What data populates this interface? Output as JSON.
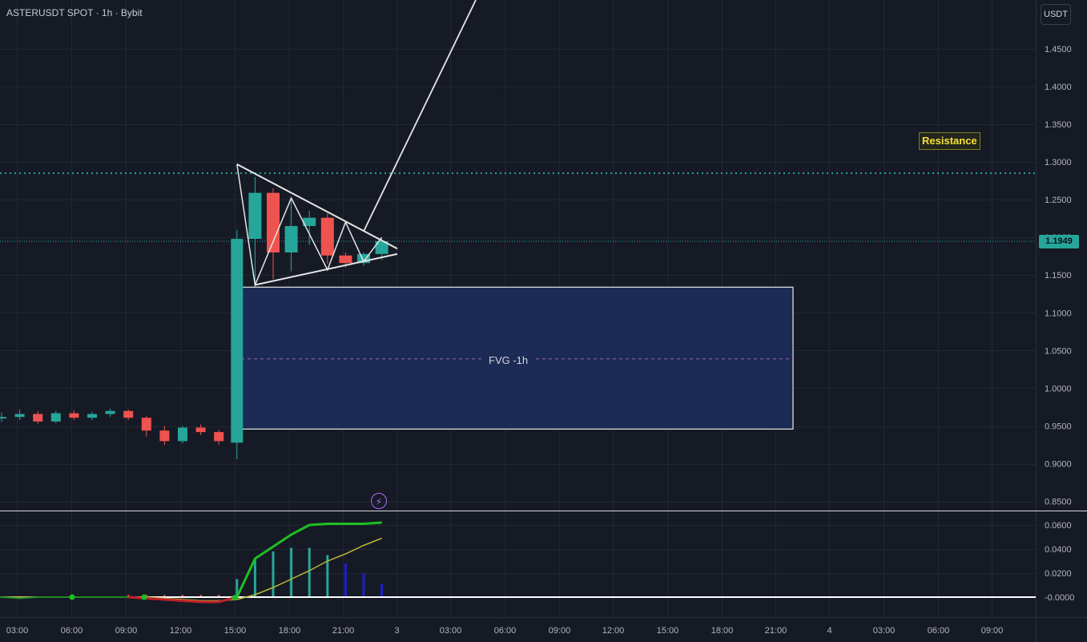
{
  "header": {
    "symbol_line": "ASTERUSDT SPOT · 1h · Bybit",
    "currency_button": "USDT"
  },
  "current_price_label": "1.1949",
  "annotations": {
    "resistance": "Resistance",
    "fvg": "FVG -1h",
    "bolt_icon": "lightning-bolt-icon"
  },
  "colors": {
    "up": "#26a69a",
    "down": "#ef5350",
    "background": "#161a25",
    "grid": "#232733",
    "fvg_fill": "#1c2b55",
    "resistance_line": "#26a69a",
    "pattern": "#e6e6e6",
    "osc_fast": "#1fbf22",
    "osc_slow": "#b8b833",
    "hist_blue": "#1e1ecc"
  },
  "chart_data": [
    {
      "type": "candlestick",
      "title": "",
      "y_axis": {
        "side": "right",
        "range": [
          0.83,
          1.5
        ],
        "ticks": [
          "1.4500",
          "1.4000",
          "1.3500",
          "1.3000",
          "1.2500",
          "1.2000",
          "1.1500",
          "1.1000",
          "1.0500",
          "1.0000",
          "0.9500",
          "0.9000",
          "0.8500"
        ]
      },
      "x_axis": {
        "ticks": [
          "03:00",
          "06:00",
          "09:00",
          "12:00",
          "15:00",
          "18:00",
          "21:00",
          "3",
          "03:00",
          "06:00",
          "09:00",
          "12:00",
          "15:00",
          "18:00",
          "21:00",
          "4",
          "03:00",
          "06:00",
          "09:00"
        ]
      },
      "grid": true,
      "candles": [
        {
          "t": "01:00",
          "o": 0.96,
          "h": 0.968,
          "l": 0.955,
          "c": 0.962
        },
        {
          "t": "02:00",
          "o": 0.962,
          "h": 0.972,
          "l": 0.958,
          "c": 0.966
        },
        {
          "t": "03:00",
          "o": 0.966,
          "h": 0.97,
          "l": 0.953,
          "c": 0.956
        },
        {
          "t": "04:00",
          "o": 0.956,
          "h": 0.97,
          "l": 0.954,
          "c": 0.967
        },
        {
          "t": "05:00",
          "o": 0.967,
          "h": 0.971,
          "l": 0.958,
          "c": 0.961
        },
        {
          "t": "06:00",
          "o": 0.961,
          "h": 0.969,
          "l": 0.958,
          "c": 0.966
        },
        {
          "t": "07:00",
          "o": 0.966,
          "h": 0.973,
          "l": 0.962,
          "c": 0.97
        },
        {
          "t": "08:00",
          "o": 0.97,
          "h": 0.972,
          "l": 0.958,
          "c": 0.961
        },
        {
          "t": "09:00",
          "o": 0.961,
          "h": 0.963,
          "l": 0.936,
          "c": 0.944
        },
        {
          "t": "10:00",
          "o": 0.944,
          "h": 0.95,
          "l": 0.925,
          "c": 0.93
        },
        {
          "t": "11:00",
          "o": 0.93,
          "h": 0.95,
          "l": 0.927,
          "c": 0.948
        },
        {
          "t": "12:00",
          "o": 0.948,
          "h": 0.952,
          "l": 0.938,
          "c": 0.942
        },
        {
          "t": "13:00",
          "o": 0.942,
          "h": 0.945,
          "l": 0.925,
          "c": 0.93
        },
        {
          "t": "14:00",
          "o": 0.928,
          "h": 1.21,
          "l": 0.906,
          "c": 1.198
        },
        {
          "t": "15:00",
          "o": 1.198,
          "h": 1.28,
          "l": 1.14,
          "c": 1.259
        },
        {
          "t": "16:00",
          "o": 1.259,
          "h": 1.265,
          "l": 1.145,
          "c": 1.18
        },
        {
          "t": "17:00",
          "o": 1.18,
          "h": 1.25,
          "l": 1.155,
          "c": 1.215
        },
        {
          "t": "18:00",
          "o": 1.215,
          "h": 1.235,
          "l": 1.19,
          "c": 1.226
        },
        {
          "t": "19:00",
          "o": 1.226,
          "h": 1.232,
          "l": 1.165,
          "c": 1.176
        },
        {
          "t": "20:00",
          "o": 1.176,
          "h": 1.18,
          "l": 1.16,
          "c": 1.166
        },
        {
          "t": "21:00",
          "o": 1.166,
          "h": 1.18,
          "l": 1.162,
          "c": 1.178
        },
        {
          "t": "22:00",
          "o": 1.178,
          "h": 1.198,
          "l": 1.17,
          "c": 1.195
        }
      ],
      "resistance_level": 1.285,
      "current_price": 1.1949,
      "fvg_zone": {
        "top": 1.134,
        "bottom": 0.946,
        "mid": 1.039,
        "start": "15:00",
        "end": "21:30 (day 3)"
      },
      "triangle_pattern": {
        "upper_line": [
          [
            "14:00",
            1.297
          ],
          [
            "22:00",
            1.185
          ]
        ],
        "lower_line": [
          [
            "15:00",
            1.137
          ],
          [
            "22:00",
            1.178
          ]
        ],
        "zigzag": [
          [
            "14:00",
            1.297
          ],
          [
            "15:00",
            1.137
          ],
          [
            "17:00",
            1.252
          ],
          [
            "19:00",
            1.157
          ],
          [
            "20:00",
            1.22
          ],
          [
            "21:00",
            1.168
          ],
          [
            "22:00",
            1.2
          ]
        ],
        "projection": [
          [
            "21:00",
            1.208
          ],
          [
            "Day 3 02:00",
            1.5
          ]
        ]
      }
    },
    {
      "type": "oscillator",
      "y_axis": {
        "side": "right",
        "range": [
          -0.012,
          0.068
        ],
        "ticks": [
          "0.0600",
          "0.0400",
          "0.0200",
          "-0.0000"
        ]
      },
      "zero_line": 0.0,
      "fast_line": [
        0.001,
        0.0,
        -0.001,
        0.0,
        0.0,
        0.0,
        0.0,
        0.0,
        0.0,
        -0.001,
        -0.002,
        -0.003,
        -0.004,
        -0.004,
        0.0,
        0.032,
        0.042,
        0.052,
        0.06,
        0.061,
        0.061,
        0.061,
        0.062
      ],
      "slow_line": [
        0.0,
        0.0,
        0.0,
        0.0,
        0.0,
        0.0,
        0.0,
        0.0,
        0.0,
        0.0,
        -0.001,
        -0.002,
        -0.003,
        -0.003,
        -0.002,
        0.002,
        0.008,
        0.015,
        0.022,
        0.03,
        0.036,
        0.043,
        0.049
      ],
      "histogram": [
        0.0,
        0.0,
        0.0,
        0.0,
        0.0,
        0.0,
        0.0,
        0.0,
        0.0,
        0.0,
        0.0,
        0.0,
        0.0,
        0.0,
        0.015,
        0.031,
        0.038,
        0.041,
        0.041,
        0.035,
        0.028,
        0.02,
        0.011
      ]
    }
  ]
}
